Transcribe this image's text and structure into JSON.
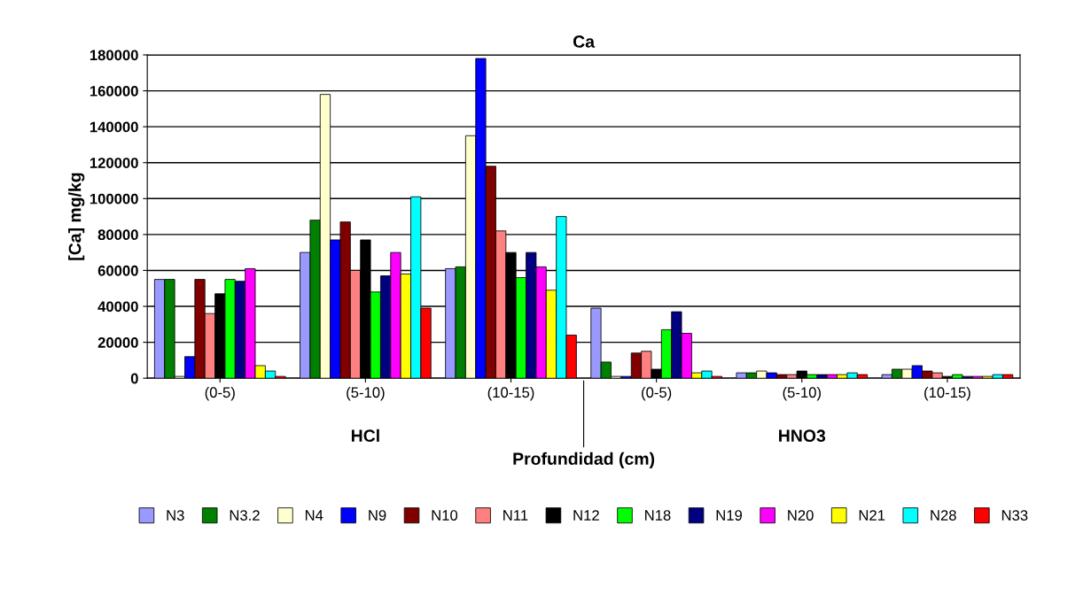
{
  "chart_data": {
    "type": "bar",
    "title": "Ca",
    "xlabel": "Profundidad (cm)",
    "ylabel": "[Ca] mg/kg",
    "categories": [
      "(0-5)",
      "(5-10)",
      "(10-15)",
      "(0-5)",
      "(5-10)",
      "(10-15)"
    ],
    "annotations": [
      "HCl",
      "HNO3"
    ],
    "ylim": [
      0,
      180000
    ],
    "yticks": [
      0,
      20000,
      40000,
      60000,
      80000,
      100000,
      120000,
      140000,
      160000,
      180000
    ],
    "grid": "y",
    "legend": "bottom",
    "series": [
      {
        "name": "N3",
        "color": "#9999ff",
        "values": [
          55000,
          70000,
          61000,
          39000,
          3000,
          2000
        ]
      },
      {
        "name": "N3.2",
        "color": "#008000",
        "values": [
          55000,
          88000,
          62000,
          9000,
          3000,
          5000
        ]
      },
      {
        "name": "N4",
        "color": "#ffffcc",
        "values": [
          1000,
          158000,
          135000,
          1000,
          4000,
          5000
        ]
      },
      {
        "name": "N9",
        "color": "#0000ff",
        "values": [
          12000,
          77000,
          178000,
          1000,
          3000,
          7000
        ]
      },
      {
        "name": "N10",
        "color": "#800000",
        "values": [
          55000,
          87000,
          118000,
          14000,
          2000,
          4000
        ]
      },
      {
        "name": "N11",
        "color": "#ff8080",
        "values": [
          36000,
          60000,
          82000,
          15000,
          2000,
          3000
        ]
      },
      {
        "name": "N12",
        "color": "#000000",
        "values": [
          47000,
          77000,
          70000,
          5000,
          4000,
          1000
        ]
      },
      {
        "name": "N18",
        "color": "#00ff00",
        "values": [
          55000,
          48000,
          56000,
          27000,
          2000,
          2000
        ]
      },
      {
        "name": "N19",
        "color": "#000080",
        "values": [
          54000,
          57000,
          70000,
          37000,
          2000,
          1000
        ]
      },
      {
        "name": "N20",
        "color": "#ff00ff",
        "values": [
          61000,
          70000,
          62000,
          25000,
          2000,
          1000
        ]
      },
      {
        "name": "N21",
        "color": "#ffff00",
        "values": [
          7000,
          58000,
          49000,
          3000,
          2000,
          1000
        ]
      },
      {
        "name": "N28",
        "color": "#00ffff",
        "values": [
          4000,
          101000,
          90000,
          4000,
          3000,
          2000
        ]
      },
      {
        "name": "N33",
        "color": "#ff0000",
        "values": [
          1000,
          39000,
          24000,
          1000,
          2000,
          2000
        ]
      }
    ]
  }
}
